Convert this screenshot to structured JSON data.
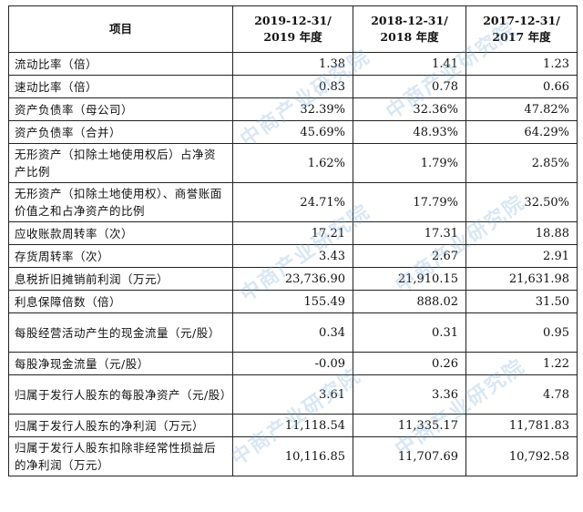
{
  "table": {
    "headers": [
      "项目",
      "2019-12-31/\n2019 年度",
      "2018-12-31/\n2018 年度",
      "2017-12-31/\n2017 年度"
    ],
    "rows": [
      {
        "label": "流动比率（倍）",
        "v2019": "1.38",
        "v2018": "1.41",
        "v2017": "1.23",
        "tall": false
      },
      {
        "label": "速动比率（倍）",
        "v2019": "0.83",
        "v2018": "0.78",
        "v2017": "0.66",
        "tall": false
      },
      {
        "label": "资产负债率（母公司）",
        "v2019": "32.39%",
        "v2018": "32.36%",
        "v2017": "47.82%",
        "tall": false
      },
      {
        "label": "资产负债率（合并）",
        "v2019": "45.69%",
        "v2018": "48.93%",
        "v2017": "64.29%",
        "tall": false
      },
      {
        "label": "无形资产（扣除土地使用权后）占净资产比例",
        "v2019": "1.62%",
        "v2018": "1.79%",
        "v2017": "2.85%",
        "tall": true
      },
      {
        "label": "无形资产（扣除土地使用权）、商誉账面价值之和占净资产的比例",
        "v2019": "24.71%",
        "v2018": "17.79%",
        "v2017": "32.50%",
        "tall": true
      },
      {
        "label": "应收账款周转率（次）",
        "v2019": "17.21",
        "v2018": "17.31",
        "v2017": "18.88",
        "tall": false
      },
      {
        "label": "存货周转率（次）",
        "v2019": "3.43",
        "v2018": "2.67",
        "v2017": "2.91",
        "tall": false
      },
      {
        "label": "息税折旧摊销前利润（万元）",
        "v2019": "23,736.90",
        "v2018": "21,910.15",
        "v2017": "21,631.98",
        "tall": false
      },
      {
        "label": "利息保障倍数（倍）",
        "v2019": "155.49",
        "v2018": "888.02",
        "v2017": "31.50",
        "tall": false
      },
      {
        "label": "每股经营活动产生的现金流量（元/股）",
        "v2019": "0.34",
        "v2018": "0.31",
        "v2017": "0.95",
        "tall": true
      },
      {
        "label": "每股净现金流量（元/股）",
        "v2019": "-0.09",
        "v2018": "0.26",
        "v2017": "1.22",
        "tall": false
      },
      {
        "label": "归属于发行人股东的每股净资产（元/股）",
        "v2019": "3.61",
        "v2018": "3.36",
        "v2017": "4.78",
        "tall": true
      },
      {
        "label": "归属于发行人股东的净利润（万元）",
        "v2019": "11,118.54",
        "v2018": "11,335.17",
        "v2017": "11,781.83",
        "tall": false
      },
      {
        "label": "归属于发行人股东扣除非经常性损益后的净利润（万元）",
        "v2019": "10,116.85",
        "v2018": "11,707.69",
        "v2017": "10,792.58",
        "tall": true
      }
    ]
  },
  "watermark": "中商产业研究院"
}
